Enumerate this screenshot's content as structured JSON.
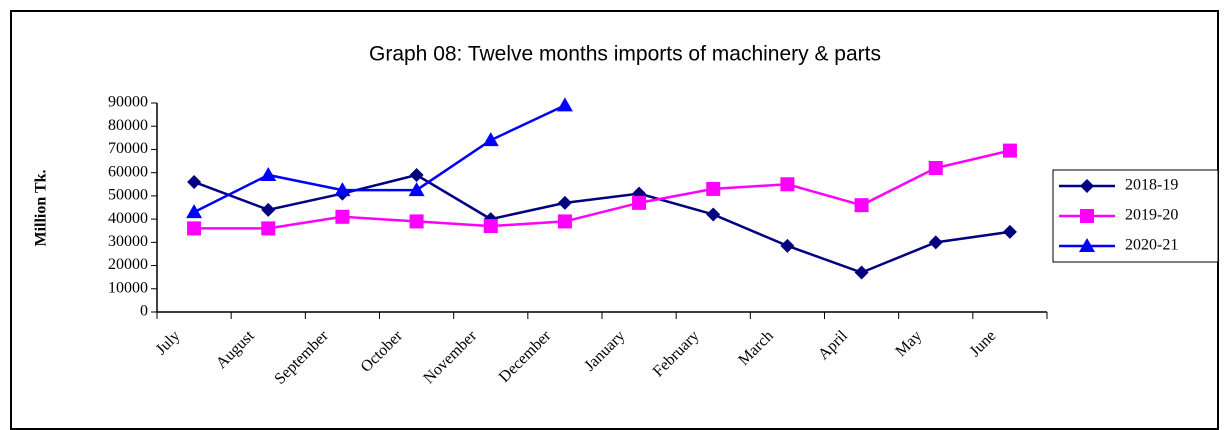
{
  "chart_data": {
    "type": "line",
    "title": "Graph 08: Twelve months imports of  machinery & parts",
    "y_label": "Million Tk.",
    "categories": [
      "July",
      "August",
      "September",
      "October",
      "November",
      "December",
      "January",
      "February",
      "March",
      "April",
      "May",
      "June"
    ],
    "series": [
      {
        "name": "2018-19",
        "color": "#000080",
        "marker": "diamond",
        "values": [
          56000,
          44000,
          51000,
          59000,
          40000,
          47000,
          51000,
          42000,
          28500,
          17000,
          30000,
          34500
        ]
      },
      {
        "name": "2019-20",
        "color": "#ff00ff",
        "marker": "square",
        "values": [
          36000,
          36000,
          41000,
          39000,
          37000,
          39000,
          47000,
          53000,
          55000,
          46000,
          62000,
          69500
        ]
      },
      {
        "name": "2020-21",
        "color": "#0000ff",
        "marker": "triangle",
        "values": [
          43000,
          59000,
          52500,
          52500,
          74000,
          89000,
          null,
          null,
          null,
          null,
          null,
          null
        ]
      }
    ],
    "ylim": [
      0,
      90000
    ],
    "yticks": [
      0,
      10000,
      20000,
      30000,
      40000,
      50000,
      60000,
      70000,
      80000,
      90000
    ],
    "grid": false,
    "legend": "right"
  }
}
